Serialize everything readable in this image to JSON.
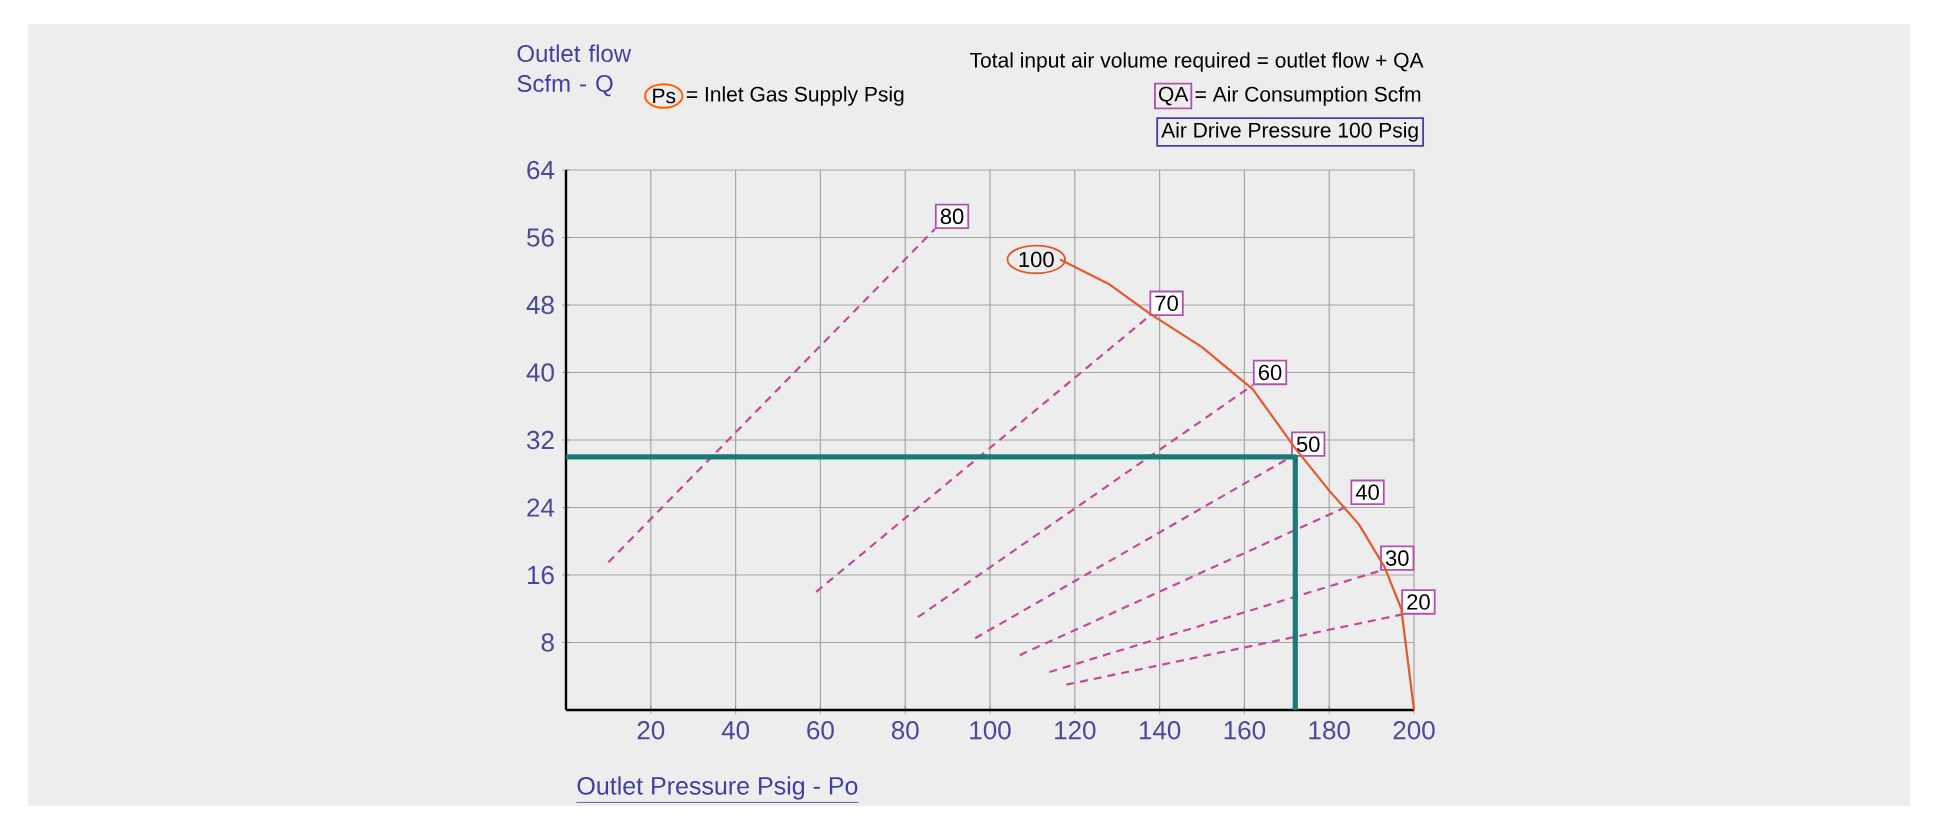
{
  "chart_data": {
    "type": "line",
    "title": "Total input air volume required = outlet flow + QA",
    "xlabel": "Outlet Pressure Psig - Po",
    "ylabel": "Outlet flow Scfm - Q",
    "annotations": [
      "Ps",
      "= Inlet Gas Supply Psig",
      "QA",
      "= Air Consumption Scfm",
      "Air Drive Pressure 100 Psig"
    ],
    "xlim": [
      0,
      200
    ],
    "ylim": [
      0,
      64
    ],
    "xticks": [
      20,
      40,
      60,
      80,
      100,
      120,
      140,
      160,
      180,
      200
    ],
    "yticks": [
      8,
      16,
      24,
      32,
      40,
      48,
      56,
      64
    ],
    "grid": true,
    "marker": "none",
    "series": [
      {
        "name": "80",
        "color": "#c04a9c",
        "line_style": "dashed",
        "x": [
          10,
          87
        ],
        "values": [
          17.5,
          57
        ]
      },
      {
        "name": "70",
        "color": "#c04a9c",
        "line_style": "dashed",
        "x": [
          59,
          137.6
        ],
        "values": [
          14,
          46.7
        ]
      },
      {
        "name": "60",
        "color": "#c04a9c",
        "line_style": "dashed",
        "x": [
          83,
          162
        ],
        "values": [
          11,
          38.5
        ]
      },
      {
        "name": "50",
        "color": "#c04a9c",
        "line_style": "dashed",
        "x": [
          96.5,
          171
        ],
        "values": [
          8.5,
          30
        ]
      },
      {
        "name": "40",
        "color": "#c04a9c",
        "line_style": "dashed",
        "x": [
          107,
          185
        ],
        "values": [
          6.5,
          24.3
        ]
      },
      {
        "name": "30",
        "color": "#c04a9c",
        "line_style": "dashed",
        "x": [
          114,
          192
        ],
        "values": [
          4.5,
          16.5
        ]
      },
      {
        "name": "20",
        "color": "#c04a9c",
        "line_style": "dashed",
        "x": [
          118,
          197
        ],
        "values": [
          3,
          11.3
        ]
      },
      {
        "name": "100",
        "color": "#e05a2a",
        "line_style": "solid",
        "x": [
          116.5,
          128,
          137.6,
          150,
          162,
          172,
          180,
          187,
          193,
          197,
          200
        ],
        "values": [
          53.4,
          50.5,
          47,
          43,
          38,
          31,
          26,
          22,
          17,
          12,
          0
        ]
      },
      {
        "color": "#1a7a78",
        "line_style": "solid",
        "x": [
          0,
          172,
          172
        ],
        "values": [
          30,
          30,
          0
        ]
      }
    ]
  }
}
